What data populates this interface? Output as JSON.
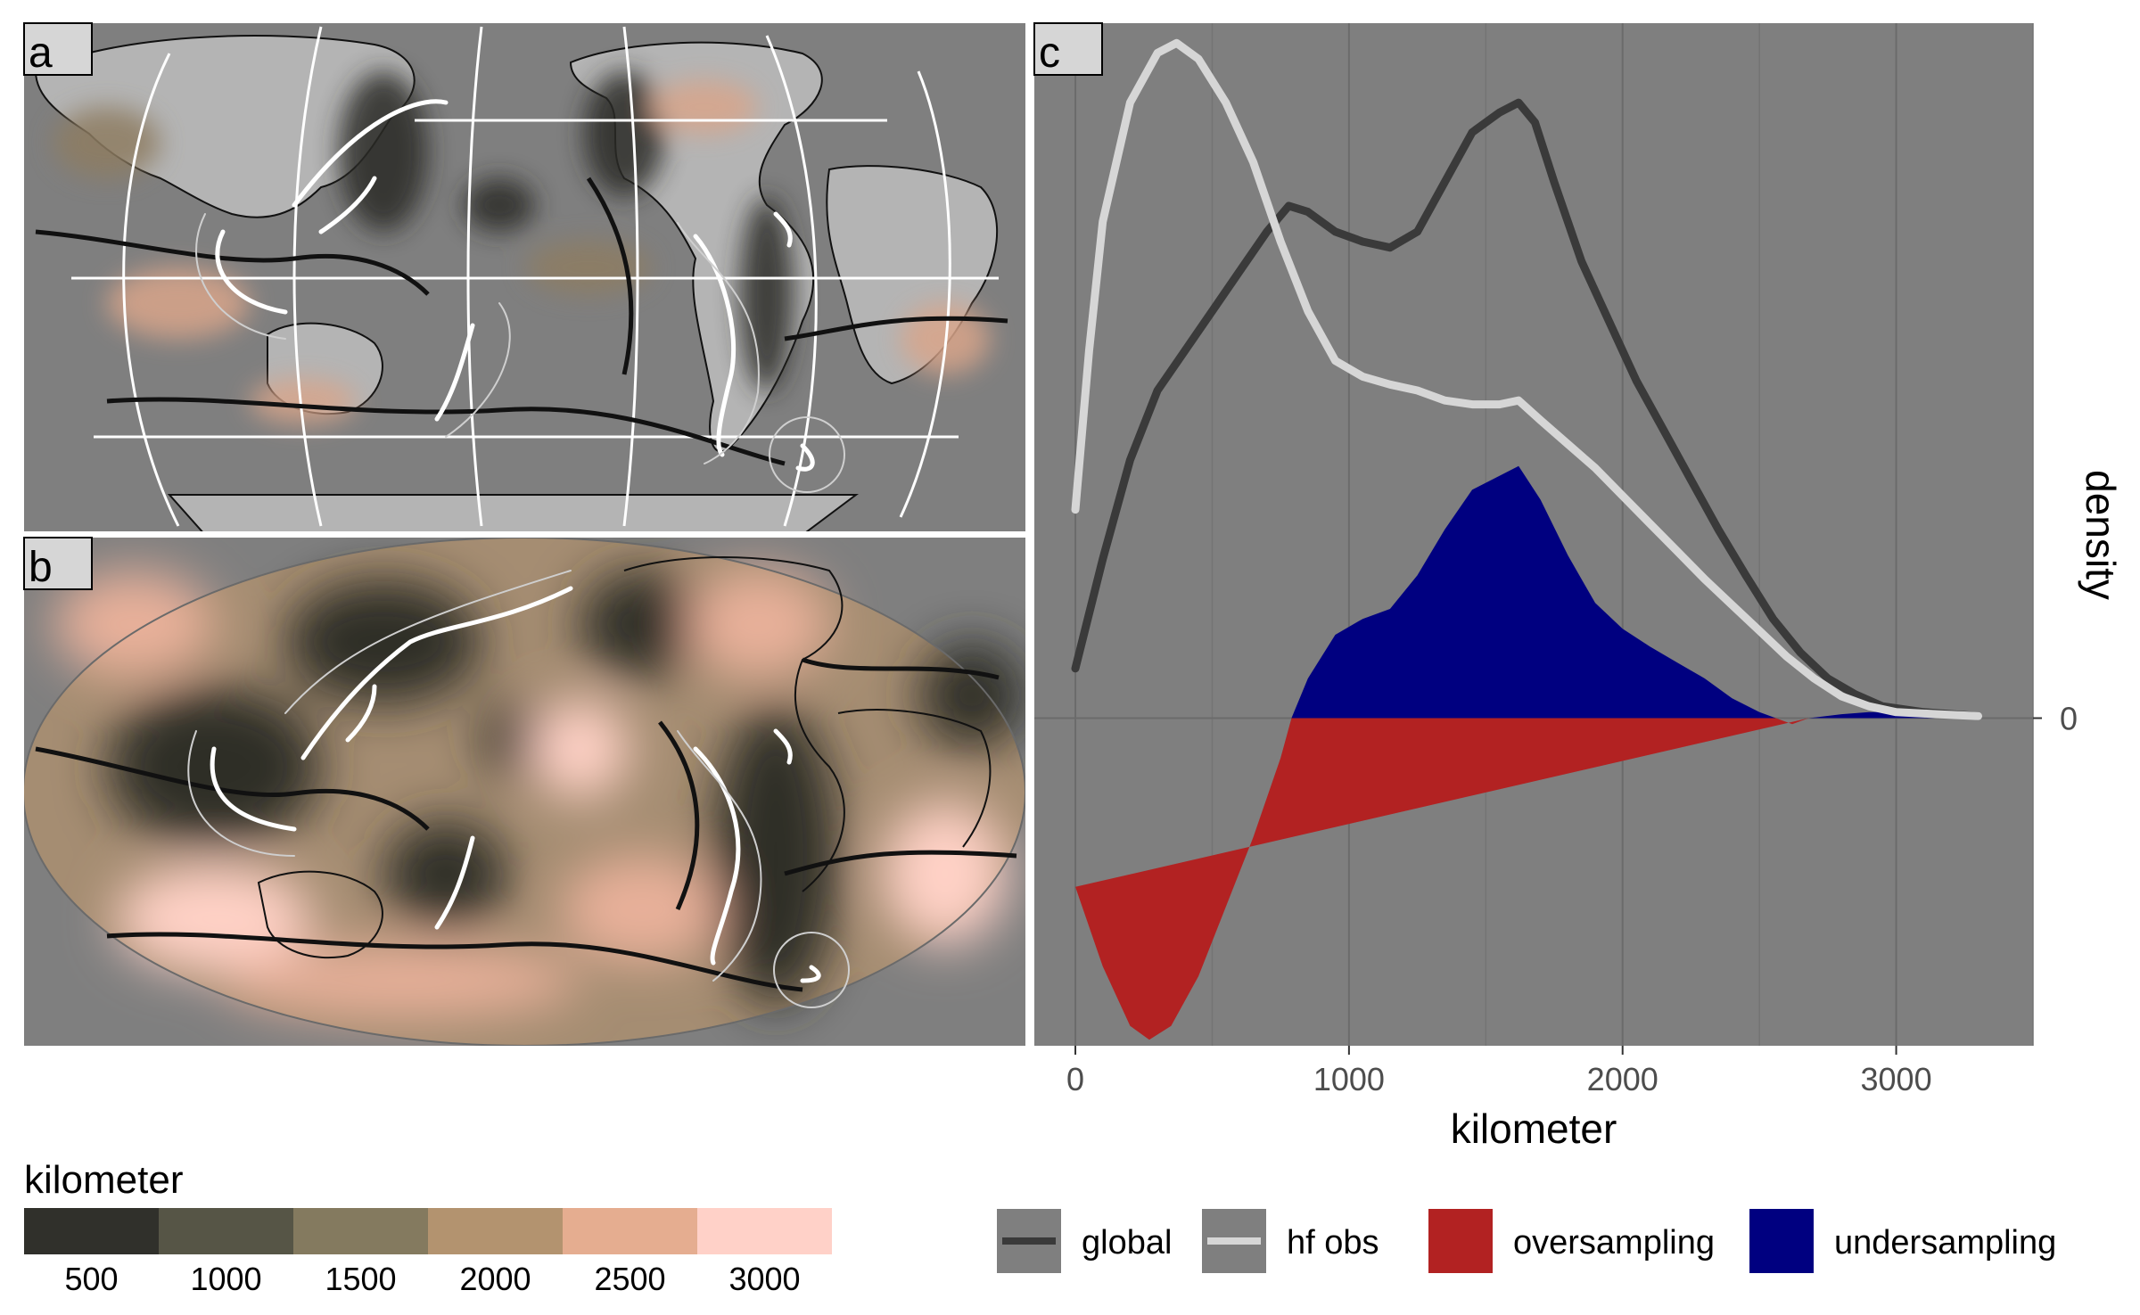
{
  "panels": {
    "a": {
      "label": "a"
    },
    "b": {
      "label": "b"
    },
    "c": {
      "label": "c"
    }
  },
  "colorbar": {
    "title": "kilometer",
    "bins": [
      {
        "label": "500",
        "color": "#30302b"
      },
      {
        "label": "1000",
        "color": "#565546"
      },
      {
        "label": "1500",
        "color": "#847a5f"
      },
      {
        "label": "2000",
        "color": "#b3936f"
      },
      {
        "label": "2500",
        "color": "#e5ad90"
      },
      {
        "label": "3000",
        "color": "#ffd1c8"
      }
    ]
  },
  "legend": {
    "items": [
      {
        "label": "global",
        "kind": "line",
        "color": "#3a3a3a"
      },
      {
        "label": "hf obs",
        "kind": "line",
        "color": "#d6d6d6"
      },
      {
        "label": "oversampling",
        "kind": "fill",
        "color": "#b22222"
      },
      {
        "label": "undersampling",
        "kind": "fill",
        "color": "#000080"
      }
    ]
  },
  "chart_data": {
    "type": "line",
    "panel": "c",
    "xlabel": "kilometer",
    "ylabel": "density",
    "xlim": [
      -150,
      3500
    ],
    "ylim": [
      -1.65,
      3.5
    ],
    "x_ticks": [
      0,
      1000,
      2000,
      3000
    ],
    "y_ticks": [
      0
    ],
    "y_tick_labels": [
      "0"
    ],
    "grid": true,
    "background": "#7f7f7f",
    "series": [
      {
        "name": "global",
        "color": "#3a3a3a",
        "points": [
          [
            0,
            0.25
          ],
          [
            100,
            0.8
          ],
          [
            200,
            1.3
          ],
          [
            300,
            1.65
          ],
          [
            400,
            1.85
          ],
          [
            500,
            2.05
          ],
          [
            600,
            2.25
          ],
          [
            700,
            2.45
          ],
          [
            780,
            2.58
          ],
          [
            850,
            2.55
          ],
          [
            950,
            2.45
          ],
          [
            1050,
            2.4
          ],
          [
            1150,
            2.37
          ],
          [
            1250,
            2.45
          ],
          [
            1350,
            2.7
          ],
          [
            1450,
            2.95
          ],
          [
            1550,
            3.05
          ],
          [
            1620,
            3.1
          ],
          [
            1680,
            3.0
          ],
          [
            1750,
            2.7
          ],
          [
            1850,
            2.3
          ],
          [
            1950,
            2.0
          ],
          [
            2050,
            1.7
          ],
          [
            2150,
            1.45
          ],
          [
            2250,
            1.2
          ],
          [
            2350,
            0.95
          ],
          [
            2450,
            0.72
          ],
          [
            2550,
            0.5
          ],
          [
            2650,
            0.33
          ],
          [
            2750,
            0.2
          ],
          [
            2850,
            0.12
          ],
          [
            2950,
            0.06
          ],
          [
            3100,
            0.03
          ],
          [
            3300,
            0.01
          ]
        ]
      },
      {
        "name": "hf obs",
        "color": "#d6d6d6",
        "points": [
          [
            0,
            1.05
          ],
          [
            50,
            1.85
          ],
          [
            100,
            2.5
          ],
          [
            200,
            3.1
          ],
          [
            300,
            3.35
          ],
          [
            370,
            3.4
          ],
          [
            450,
            3.32
          ],
          [
            550,
            3.1
          ],
          [
            650,
            2.8
          ],
          [
            750,
            2.4
          ],
          [
            850,
            2.05
          ],
          [
            950,
            1.8
          ],
          [
            1050,
            1.72
          ],
          [
            1150,
            1.68
          ],
          [
            1250,
            1.65
          ],
          [
            1350,
            1.6
          ],
          [
            1450,
            1.58
          ],
          [
            1550,
            1.58
          ],
          [
            1620,
            1.6
          ],
          [
            1700,
            1.5
          ],
          [
            1800,
            1.38
          ],
          [
            1900,
            1.26
          ],
          [
            2000,
            1.12
          ],
          [
            2100,
            0.98
          ],
          [
            2200,
            0.84
          ],
          [
            2300,
            0.7
          ],
          [
            2400,
            0.57
          ],
          [
            2500,
            0.44
          ],
          [
            2600,
            0.31
          ],
          [
            2700,
            0.2
          ],
          [
            2800,
            0.11
          ],
          [
            2900,
            0.06
          ],
          [
            3000,
            0.03
          ],
          [
            3150,
            0.02
          ],
          [
            3300,
            0.01
          ]
        ]
      },
      {
        "name": "oversampling",
        "color": "#b22222",
        "points": [
          [
            0,
            -0.85
          ],
          [
            100,
            -1.25
          ],
          [
            200,
            -1.55
          ],
          [
            270,
            -1.62
          ],
          [
            350,
            -1.55
          ],
          [
            450,
            -1.3
          ],
          [
            550,
            -0.95
          ],
          [
            650,
            -0.6
          ],
          [
            750,
            -0.2
          ],
          [
            790,
            0
          ],
          [
            2560,
            0
          ],
          [
            2620,
            -0.03
          ],
          [
            2680,
            0
          ]
        ]
      },
      {
        "name": "undersampling",
        "color": "#000080",
        "points": [
          [
            790,
            0
          ],
          [
            850,
            0.2
          ],
          [
            950,
            0.42
          ],
          [
            1050,
            0.5
          ],
          [
            1150,
            0.55
          ],
          [
            1250,
            0.72
          ],
          [
            1350,
            0.95
          ],
          [
            1450,
            1.15
          ],
          [
            1550,
            1.22
          ],
          [
            1620,
            1.27
          ],
          [
            1700,
            1.1
          ],
          [
            1800,
            0.82
          ],
          [
            1900,
            0.58
          ],
          [
            2000,
            0.45
          ],
          [
            2100,
            0.36
          ],
          [
            2200,
            0.28
          ],
          [
            2300,
            0.2
          ],
          [
            2400,
            0.1
          ],
          [
            2500,
            0.03
          ],
          [
            2560,
            0
          ],
          [
            2680,
            0
          ],
          [
            2800,
            0.02
          ],
          [
            2900,
            0.03
          ],
          [
            3000,
            0.03
          ],
          [
            3100,
            0.02
          ],
          [
            3300,
            0
          ]
        ]
      }
    ]
  }
}
